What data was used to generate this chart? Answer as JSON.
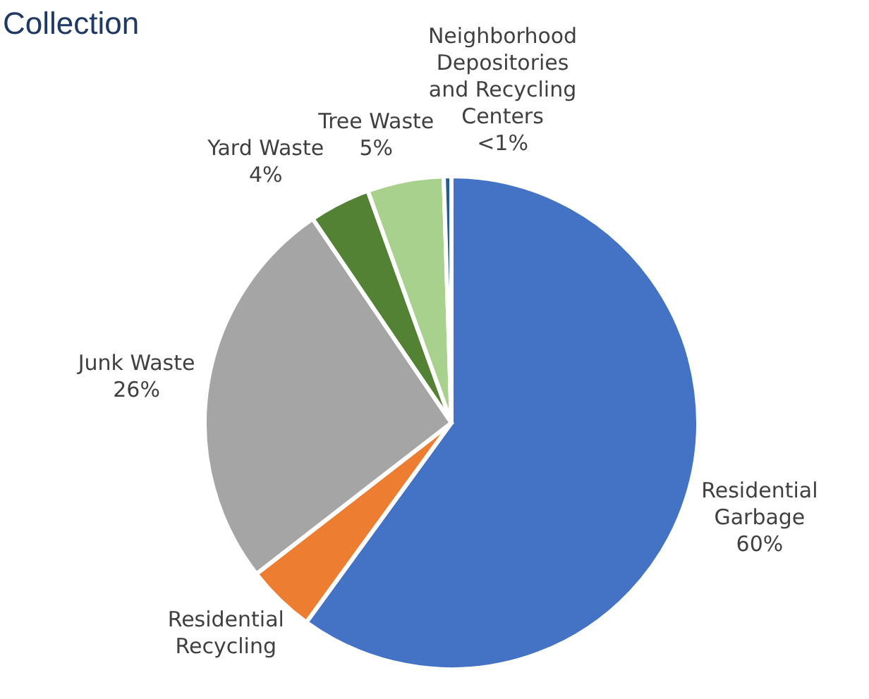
{
  "chart_data": {
    "type": "pie",
    "title": "Collection",
    "categories": [
      "Residential Garbage",
      "Residential Recycling",
      "Junk Waste",
      "Yard Waste",
      "Tree Waste",
      "Neighborhood Depositories and Recycling Centers"
    ],
    "values": [
      60,
      4.5,
      26,
      4,
      5,
      0.5
    ],
    "value_labels": [
      "60%",
      null,
      "26%",
      "4%",
      "5%",
      "<1%"
    ],
    "colors": [
      "#4472c4",
      "#ed7d31",
      "#a5a5a5",
      "#548235",
      "#a9d18e",
      "#255e91"
    ]
  }
}
